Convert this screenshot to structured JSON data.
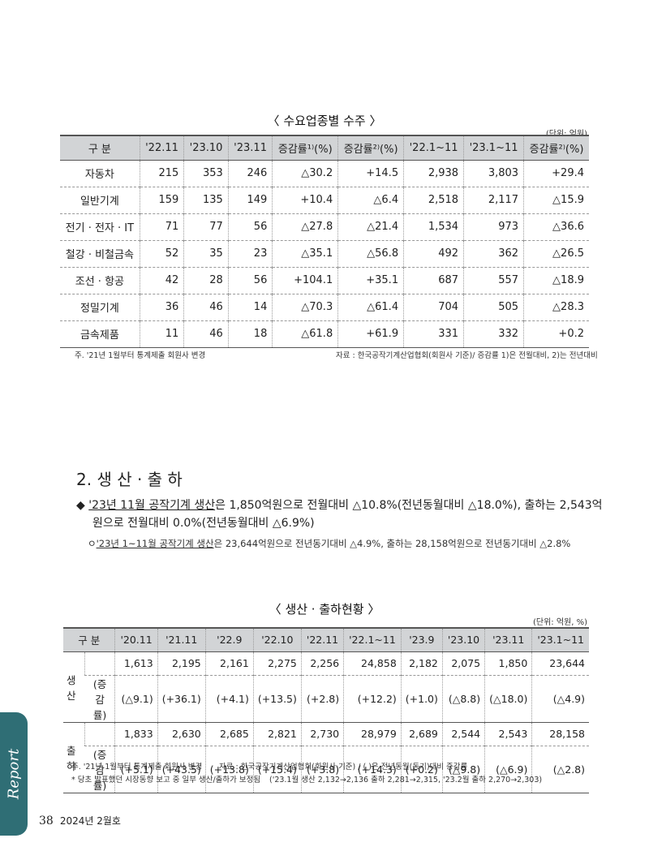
{
  "table1": {
    "caption": "〈 수요업종별 수주 〉",
    "unit": "(단위: 억원)",
    "headers": [
      "구 분",
      "'22.11",
      "'23.10",
      "'23.11",
      "증감률¹⁾(%)",
      "증감률²⁾(%)",
      "'22.1~11",
      "'23.1~11",
      "증감률²⁾(%)"
    ],
    "rows": [
      [
        "자동차",
        "215",
        "353",
        "246",
        "△30.2",
        "+14.5",
        "2,938",
        "3,803",
        "+29.4"
      ],
      [
        "일반기계",
        "159",
        "135",
        "149",
        "+10.4",
        "△6.4",
        "2,518",
        "2,117",
        "△15.9"
      ],
      [
        "전기 · 전자 · IT",
        "71",
        "77",
        "56",
        "△27.8",
        "△21.4",
        "1,534",
        "973",
        "△36.6"
      ],
      [
        "철강 · 비철금속",
        "52",
        "35",
        "23",
        "△35.1",
        "△56.8",
        "492",
        "362",
        "△26.5"
      ],
      [
        "조선 · 항공",
        "42",
        "28",
        "56",
        "+104.1",
        "+35.1",
        "687",
        "557",
        "△18.9"
      ],
      [
        "정밀기계",
        "36",
        "46",
        "14",
        "△70.3",
        "△61.4",
        "704",
        "505",
        "△28.3"
      ],
      [
        "금속제품",
        "11",
        "46",
        "18",
        "△61.8",
        "+61.9",
        "331",
        "332",
        "+0.2"
      ]
    ],
    "note_left": "주. '21년 1월부터 통계제출 회원사 변경",
    "note_right": "자료 : 한국공작기계산업협회(회원사 기준)/ 증감률 1)은 전월대비, 2)는 전년대비"
  },
  "section": {
    "title": "2. 생 산 · 출 하",
    "bullet_marker": "◆",
    "bullet_underlined": "'23년 11월 공작기계 생산",
    "bullet_line1_rest": "은 1,850억원으로 전월대비 △10.8%(전년동월대비 △18.0%), 출하는 2,543억",
    "bullet_line2": "원으로 전월대비 0.0%(전년동월대비 △6.9%)",
    "sub_marker": "ㅇ",
    "sub_underlined": "'23년 1~11월 공작기계 생산",
    "sub_rest": "은  23,644억원으로 전년동기대비 △4.9%, 출하는 28,158억원으로 전년동기대비 △2.8%"
  },
  "table2": {
    "caption": "〈 생산 · 출하현황 〉",
    "unit": "(단위: 억원, %)",
    "headers": [
      "구 분",
      "'20.11",
      "'21.11",
      "'22.9",
      "'22.10",
      "'22.11",
      "'22.1~11",
      "'23.9",
      "'23.10",
      "'23.11",
      "'23.1~11"
    ],
    "rate_label": "(증감률)",
    "groups": [
      {
        "label": "생  산",
        "values": [
          "1,613",
          "2,195",
          "2,161",
          "2,275",
          "2,256",
          "24,858",
          "2,182",
          "2,075",
          "1,850",
          "23,644"
        ],
        "rates": [
          "(△9.1)",
          "(+36.1)",
          "(+4.1)",
          "(+13.5)",
          "(+2.8)",
          "(+12.2)",
          "(+1.0)",
          "(△8.8)",
          "(△18.0)",
          "(△4.9)"
        ]
      },
      {
        "label": "출  하",
        "values": [
          "1,833",
          "2,630",
          "2,685",
          "2,821",
          "2,730",
          "28,979",
          "2,689",
          "2,544",
          "2,543",
          "28,158"
        ],
        "rates": [
          "(+5.1)",
          "(+43.5)",
          "(+13.8)",
          "(+15.4)",
          "(+3.8)",
          "(+14.3)",
          "(+0.2)",
          "(△9.8)",
          "(△6.9)",
          "(△2.8)"
        ]
      }
    ],
    "note1_left": "주. '21년 1월부터 통계제출 회원사 변경",
    "note1_right": "자료 :  한국공작기계산업협회(회원사 기준)  / (  )은 전년동월(동기)대비 증감률",
    "note2_left": "* 당초 발표했던 시장동향 보고 중 일부 생산/출하가 보정됨",
    "note2_right": "('23.1월 생산 2,132→2,136 출하 2,281→2,315, '23.2월 출하 2,270→2,303)"
  },
  "side_tab": {
    "label": "Report",
    "color": "#2f6e75"
  },
  "footer": {
    "page": "38",
    "issue": "2024년 2월호"
  }
}
